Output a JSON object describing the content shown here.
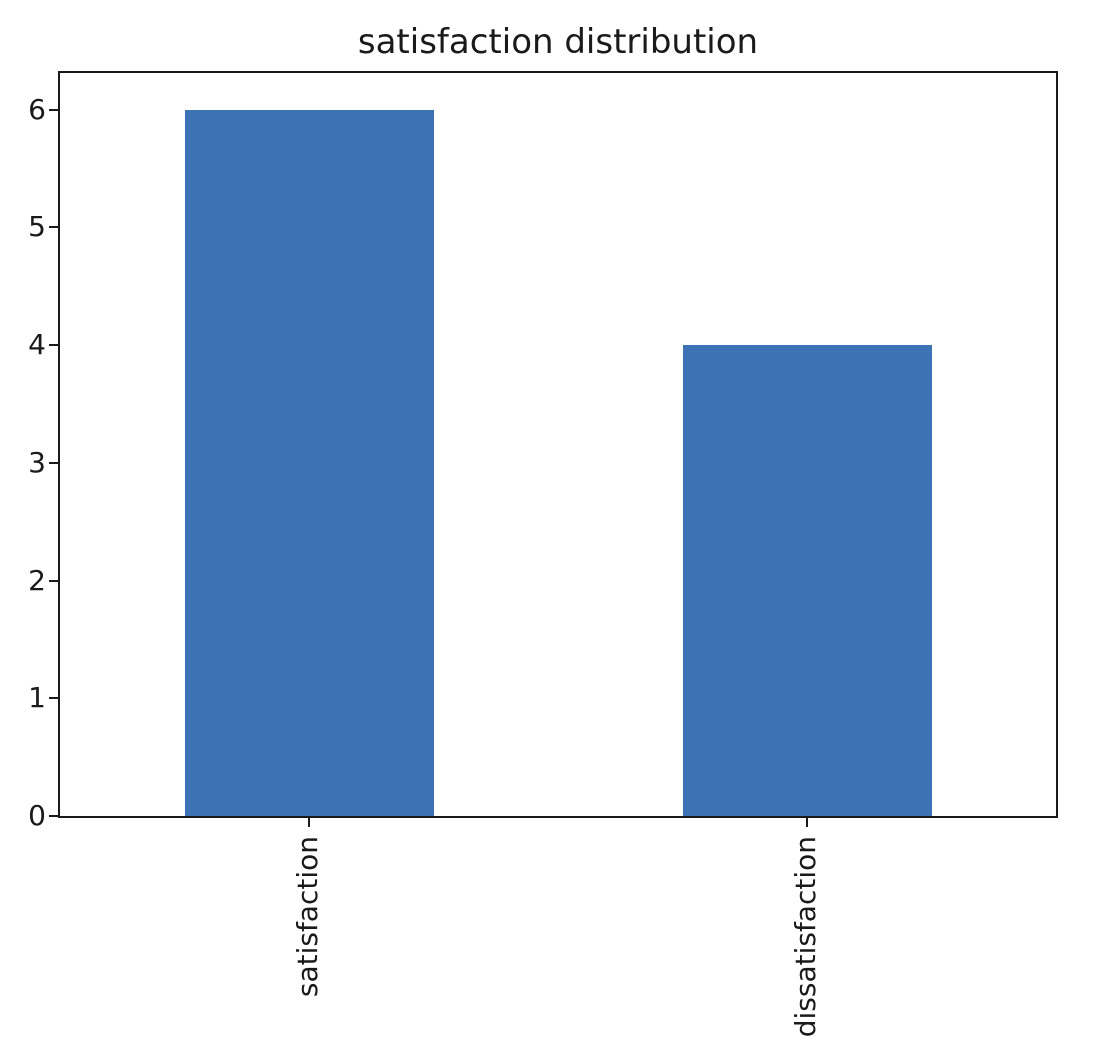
{
  "chart_data": {
    "type": "bar",
    "title": "satisfaction distribution",
    "categories": [
      "satisfaction",
      "dissatisfaction"
    ],
    "values": [
      6,
      4
    ],
    "xlabel": "",
    "ylabel": "",
    "y_ticks": [
      0,
      1,
      2,
      3,
      4,
      5,
      6
    ],
    "ylim": [
      0,
      6.31
    ],
    "grid": false,
    "legend": null,
    "x_tick_rotation": 90,
    "bar_color": "#3b73b5",
    "axis_color": "#1a1a1a",
    "bar_width_fraction": 0.5
  }
}
